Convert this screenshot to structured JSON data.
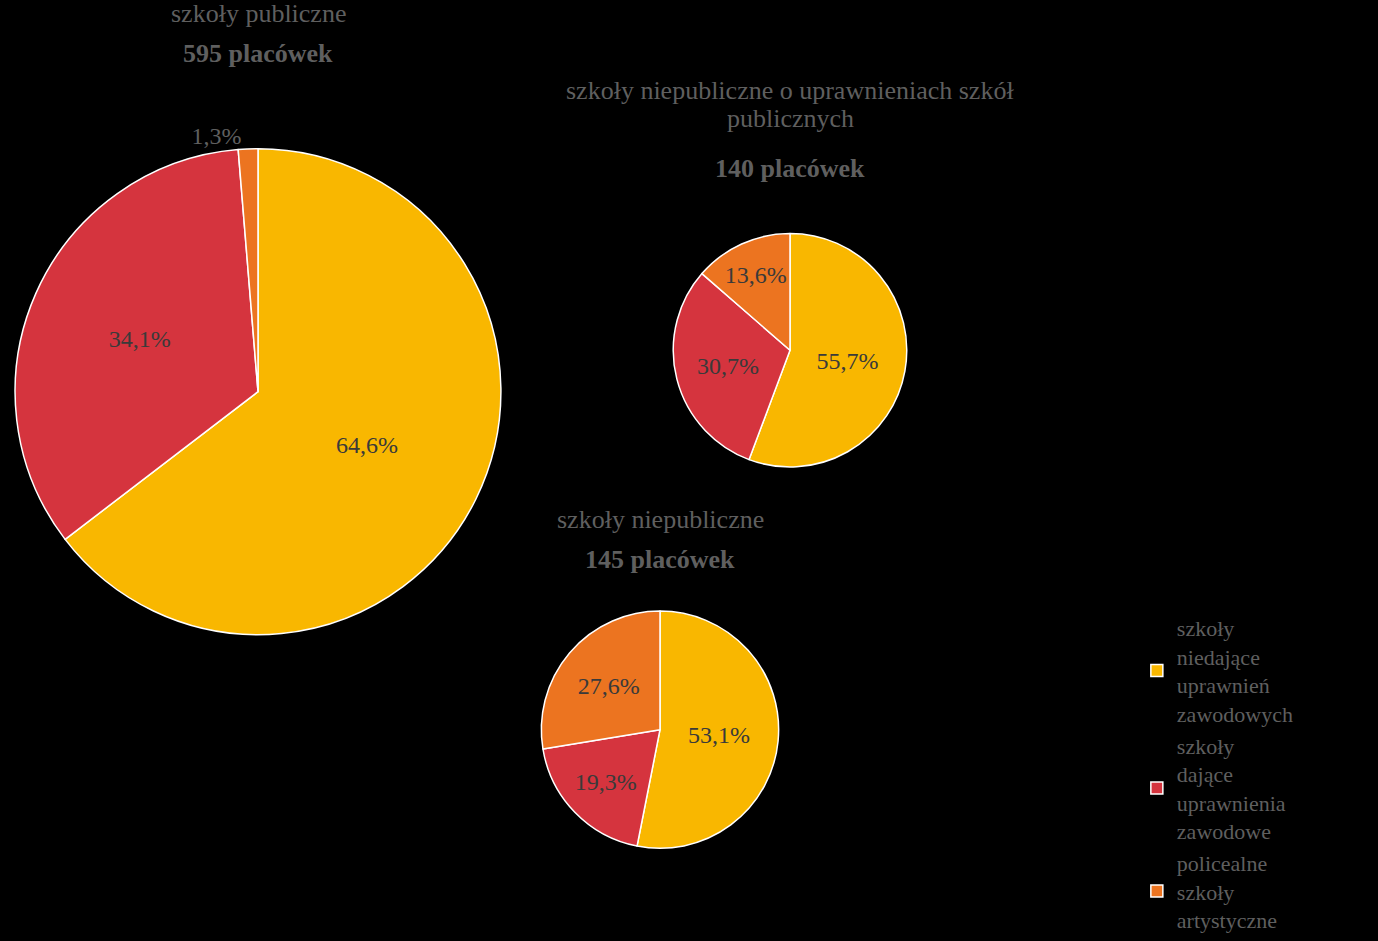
{
  "chart_data": [
    {
      "type": "pie",
      "title": "szkoły publiczne",
      "subtitle": "595 placówek",
      "categories": [
        "szkoły niedające uprawnień zawodowych",
        "szkoły dające uprawnienia zawodowe",
        "policealne szkoły artystyczne"
      ],
      "values": [
        64.6,
        34.1,
        1.3
      ],
      "value_labels": [
        "64,6%",
        "34,1%",
        "1,3%"
      ],
      "colors": [
        "#F9B700",
        "#D5343E",
        "#EC7420"
      ],
      "data_labels": true,
      "legend": "lower right"
    },
    {
      "type": "pie",
      "title": "szkoły niepubliczne o uprawnieniach szkół publicznych",
      "subtitle": "140 placówek",
      "categories": [
        "szkoły niedające uprawnień zawodowych",
        "szkoły dające uprawnienia zawodowe",
        "policealne szkoły artystyczne"
      ],
      "values": [
        55.7,
        30.7,
        13.6
      ],
      "value_labels": [
        "55,7%",
        "30,7%",
        "13,6%"
      ],
      "colors": [
        "#F9B700",
        "#D5343E",
        "#EC7420"
      ],
      "data_labels": true,
      "legend": "lower right"
    },
    {
      "type": "pie",
      "title": "szkoły niepubliczne",
      "subtitle": "145 placówek",
      "categories": [
        "szkoły niedające uprawnień zawodowych",
        "szkoły dające uprawnienia zawodowe",
        "policealne szkoły artystyczne"
      ],
      "values": [
        53.1,
        19.3,
        27.6
      ],
      "value_labels": [
        "53,1%",
        "19,3%",
        "27,6%"
      ],
      "colors": [
        "#F9B700",
        "#D5343E",
        "#EC7420"
      ],
      "data_labels": true,
      "legend": "lower right"
    }
  ]
}
